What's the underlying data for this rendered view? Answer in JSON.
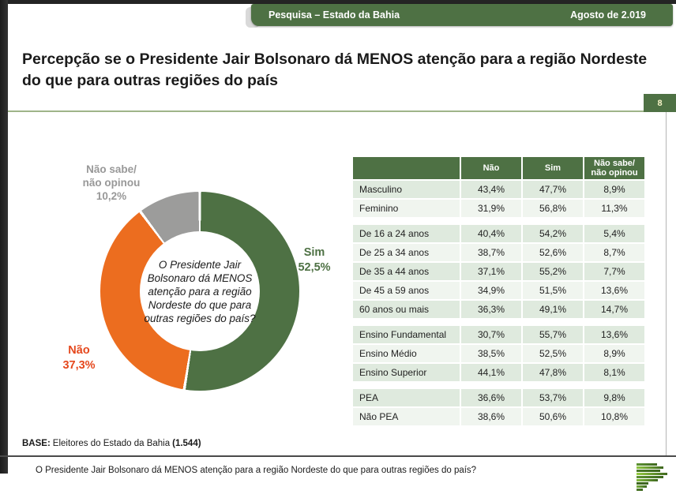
{
  "header": {
    "tab_title": "Pesquisa – Estado da Bahia",
    "date": "Agosto de 2.019",
    "page_number": "8"
  },
  "title": "Percepção se o  Presidente Jair Bolsonaro dá MENOS atenção para a região Nordeste do que para outras regiões do país",
  "chart_data": {
    "type": "pie",
    "donut": true,
    "center_question": "O Presidente Jair Bolsonaro dá MENOS atenção para a região Nordeste do que para outras regiões do país?",
    "slices": [
      {
        "name": "Sim",
        "value": 52.5,
        "display": "52,5%",
        "color": "#4E7144",
        "label_color": "#4E7144"
      },
      {
        "name": "Não",
        "value": 37.3,
        "display": "37,3%",
        "color": "#EC6D1F",
        "label_color": "#E5481D"
      },
      {
        "name": "Não sabe/ não opinou",
        "value": 10.2,
        "display": "10,2%",
        "color": "#9C9C9B",
        "label_color": "#989898"
      }
    ],
    "labels": {
      "sim_name": "Sim",
      "sim_pct": "52,5%",
      "nao_name": "Não",
      "nao_pct": "37,3%",
      "ns_line1": "Não sabe/",
      "ns_line2": "não opinou",
      "ns_pct": "10,2%"
    }
  },
  "table": {
    "headers": [
      "Não",
      "Sim",
      "Não sabe/\nnão opinou"
    ],
    "groups": [
      {
        "rows": [
          [
            "Masculino",
            "43,4%",
            "47,7%",
            "8,9%"
          ],
          [
            "Feminino",
            "31,9%",
            "56,8%",
            "11,3%"
          ]
        ]
      },
      {
        "rows": [
          [
            "De 16 a 24 anos",
            "40,4%",
            "54,2%",
            "5,4%"
          ],
          [
            "De 25 a 34 anos",
            "38,7%",
            "52,6%",
            "8,7%"
          ],
          [
            "De 35 a 44 anos",
            "37,1%",
            "55,2%",
            "7,7%"
          ],
          [
            "De 45 a 59 anos",
            "34,9%",
            "51,5%",
            "13,6%"
          ],
          [
            "60 anos ou mais",
            "36,3%",
            "49,1%",
            "14,7%"
          ]
        ]
      },
      {
        "rows": [
          [
            "Ensino Fundamental",
            "30,7%",
            "55,7%",
            "13,6%"
          ],
          [
            "Ensino Médio",
            "38,5%",
            "52,5%",
            "8,9%"
          ],
          [
            "Ensino Superior",
            "44,1%",
            "47,8%",
            "8,1%"
          ]
        ]
      },
      {
        "rows": [
          [
            "PEA",
            "36,6%",
            "53,7%",
            "9,8%"
          ],
          [
            "Não PEA",
            "38,6%",
            "50,6%",
            "10,8%"
          ]
        ]
      }
    ]
  },
  "footer": {
    "base_label": "BASE:",
    "base_text": "Eleitores do Estado da Bahia",
    "base_count": "(1.544)",
    "question": "O Presidente Jair Bolsonaro dá MENOS atenção para a região Nordeste do que para outras regiões do país?"
  },
  "colors": {
    "green": "#4E7144",
    "separator_line": "#9FB489",
    "row_dark": "#DFEADE",
    "row_light": "#F0F5EF",
    "orange": "#EC6D1F",
    "gray": "#9C9C9B"
  },
  "logo_bars": [
    {
      "w": 26,
      "c": "#5E9334"
    },
    {
      "w": 34,
      "c": "#8DC63F"
    },
    {
      "w": 30,
      "c": "#4A7A2A"
    },
    {
      "w": 39,
      "c": "#97CC43"
    },
    {
      "w": 34,
      "c": "#5E9334"
    },
    {
      "w": 27,
      "c": "#82BC3E"
    },
    {
      "w": 15,
      "c": "#3E671F"
    },
    {
      "w": 13,
      "c": "#74AC3C"
    },
    {
      "w": 8,
      "c": "#4E7A2B"
    }
  ]
}
